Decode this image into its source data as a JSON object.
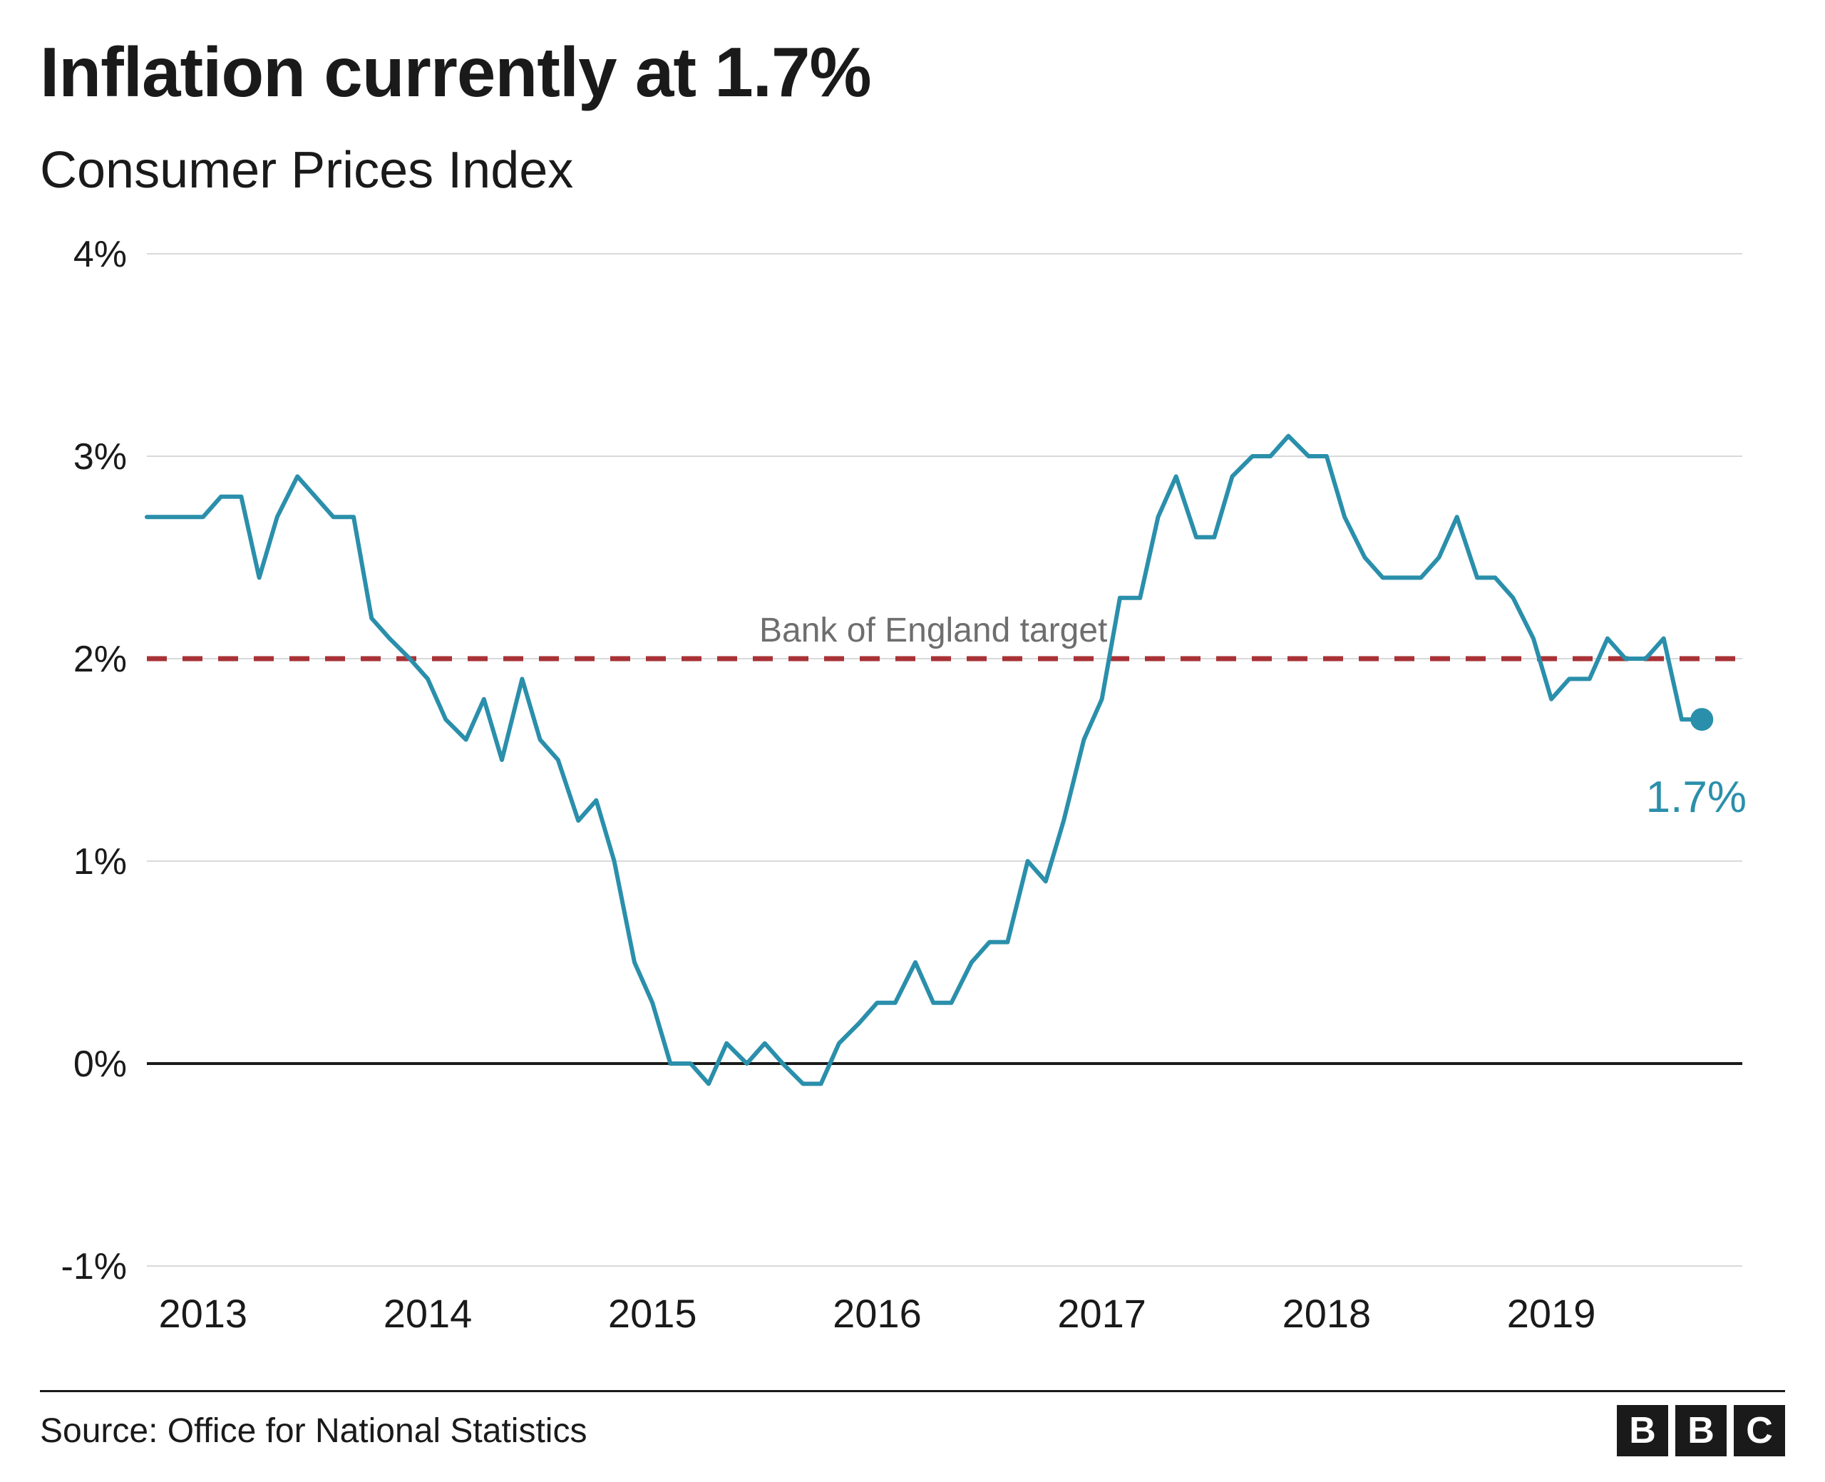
{
  "title": "Inflation currently at 1.7%",
  "subtitle": "Consumer Prices Index",
  "source_label": "Source: Office for National Statistics",
  "brand_letters": [
    "B",
    "B",
    "C"
  ],
  "chart": {
    "type": "line",
    "background_color": "#ffffff",
    "grid_color": "#d9d9d9",
    "zero_line_color": "#1a1a1a",
    "zero_line_width": 4,
    "line_color": "#2a8fab",
    "line_width": 6,
    "end_marker_color": "#2a8fab",
    "end_marker_radius": 16,
    "end_value_label": "1.7%",
    "end_value_fontsize": 62,
    "end_value_color": "#2a8fab",
    "target_line": {
      "value": 2.0,
      "label": "Bank of England target",
      "label_fontsize": 48,
      "label_color": "#6e6e6e",
      "color": "#a83236",
      "dash": "28 22",
      "width": 7
    },
    "y_axis": {
      "min": -1,
      "max": 4,
      "ticks": [
        -1,
        0,
        1,
        2,
        3,
        4
      ],
      "tick_labels": [
        "-1%",
        "0%",
        "1%",
        "2%",
        "3%",
        "4%"
      ],
      "fontsize": 52,
      "color": "#1a1a1a"
    },
    "x_axis": {
      "tick_years": [
        2013,
        2014,
        2015,
        2016,
        2017,
        2018,
        2019
      ],
      "fontsize": 56,
      "color": "#1a1a1a"
    },
    "x_domain": {
      "start_year": 2012.75,
      "end_year": 2019.85
    },
    "series": [
      {
        "x": 2012.75,
        "y": 2.7
      },
      {
        "x": 2012.83,
        "y": 2.7
      },
      {
        "x": 2012.92,
        "y": 2.7
      },
      {
        "x": 2013.0,
        "y": 2.7
      },
      {
        "x": 2013.08,
        "y": 2.8
      },
      {
        "x": 2013.17,
        "y": 2.8
      },
      {
        "x": 2013.25,
        "y": 2.4
      },
      {
        "x": 2013.33,
        "y": 2.7
      },
      {
        "x": 2013.42,
        "y": 2.9
      },
      {
        "x": 2013.5,
        "y": 2.8
      },
      {
        "x": 2013.58,
        "y": 2.7
      },
      {
        "x": 2013.67,
        "y": 2.7
      },
      {
        "x": 2013.75,
        "y": 2.2
      },
      {
        "x": 2013.83,
        "y": 2.1
      },
      {
        "x": 2013.92,
        "y": 2.0
      },
      {
        "x": 2014.0,
        "y": 1.9
      },
      {
        "x": 2014.08,
        "y": 1.7
      },
      {
        "x": 2014.17,
        "y": 1.6
      },
      {
        "x": 2014.25,
        "y": 1.8
      },
      {
        "x": 2014.33,
        "y": 1.5
      },
      {
        "x": 2014.42,
        "y": 1.9
      },
      {
        "x": 2014.5,
        "y": 1.6
      },
      {
        "x": 2014.58,
        "y": 1.5
      },
      {
        "x": 2014.67,
        "y": 1.2
      },
      {
        "x": 2014.75,
        "y": 1.3
      },
      {
        "x": 2014.83,
        "y": 1.0
      },
      {
        "x": 2014.92,
        "y": 0.5
      },
      {
        "x": 2015.0,
        "y": 0.3
      },
      {
        "x": 2015.08,
        "y": 0.0
      },
      {
        "x": 2015.17,
        "y": 0.0
      },
      {
        "x": 2015.25,
        "y": -0.1
      },
      {
        "x": 2015.33,
        "y": 0.1
      },
      {
        "x": 2015.42,
        "y": 0.0
      },
      {
        "x": 2015.5,
        "y": 0.1
      },
      {
        "x": 2015.58,
        "y": 0.0
      },
      {
        "x": 2015.67,
        "y": -0.1
      },
      {
        "x": 2015.75,
        "y": -0.1
      },
      {
        "x": 2015.83,
        "y": 0.1
      },
      {
        "x": 2015.92,
        "y": 0.2
      },
      {
        "x": 2016.0,
        "y": 0.3
      },
      {
        "x": 2016.08,
        "y": 0.3
      },
      {
        "x": 2016.17,
        "y": 0.5
      },
      {
        "x": 2016.25,
        "y": 0.3
      },
      {
        "x": 2016.33,
        "y": 0.3
      },
      {
        "x": 2016.42,
        "y": 0.5
      },
      {
        "x": 2016.5,
        "y": 0.6
      },
      {
        "x": 2016.58,
        "y": 0.6
      },
      {
        "x": 2016.67,
        "y": 1.0
      },
      {
        "x": 2016.75,
        "y": 0.9
      },
      {
        "x": 2016.83,
        "y": 1.2
      },
      {
        "x": 2016.92,
        "y": 1.6
      },
      {
        "x": 2017.0,
        "y": 1.8
      },
      {
        "x": 2017.08,
        "y": 2.3
      },
      {
        "x": 2017.17,
        "y": 2.3
      },
      {
        "x": 2017.25,
        "y": 2.7
      },
      {
        "x": 2017.33,
        "y": 2.9
      },
      {
        "x": 2017.42,
        "y": 2.6
      },
      {
        "x": 2017.5,
        "y": 2.6
      },
      {
        "x": 2017.58,
        "y": 2.9
      },
      {
        "x": 2017.67,
        "y": 3.0
      },
      {
        "x": 2017.75,
        "y": 3.0
      },
      {
        "x": 2017.83,
        "y": 3.1
      },
      {
        "x": 2017.92,
        "y": 3.0
      },
      {
        "x": 2018.0,
        "y": 3.0
      },
      {
        "x": 2018.08,
        "y": 2.7
      },
      {
        "x": 2018.17,
        "y": 2.5
      },
      {
        "x": 2018.25,
        "y": 2.4
      },
      {
        "x": 2018.33,
        "y": 2.4
      },
      {
        "x": 2018.42,
        "y": 2.4
      },
      {
        "x": 2018.5,
        "y": 2.5
      },
      {
        "x": 2018.58,
        "y": 2.7
      },
      {
        "x": 2018.67,
        "y": 2.4
      },
      {
        "x": 2018.75,
        "y": 2.4
      },
      {
        "x": 2018.83,
        "y": 2.3
      },
      {
        "x": 2018.92,
        "y": 2.1
      },
      {
        "x": 2019.0,
        "y": 1.8
      },
      {
        "x": 2019.08,
        "y": 1.9
      },
      {
        "x": 2019.17,
        "y": 1.9
      },
      {
        "x": 2019.25,
        "y": 2.1
      },
      {
        "x": 2019.33,
        "y": 2.0
      },
      {
        "x": 2019.42,
        "y": 2.0
      },
      {
        "x": 2019.5,
        "y": 2.1
      },
      {
        "x": 2019.58,
        "y": 1.7
      },
      {
        "x": 2019.67,
        "y": 1.7
      }
    ]
  }
}
